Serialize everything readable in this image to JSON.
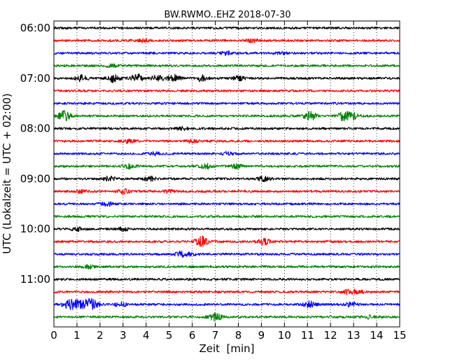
{
  "chart_data": {
    "type": "line",
    "title": "BW.RWMO..EHZ 2018-07-30",
    "xlabel": "Zeit  [min]",
    "ylabel": "UTC (Lokalzeit = UTC + 02:00)",
    "xlim": [
      0,
      15
    ],
    "x_ticks": [
      "0",
      "1",
      "2",
      "3",
      "4",
      "5",
      "6",
      "7",
      "8",
      "9",
      "10",
      "11",
      "12",
      "13",
      "14",
      "15"
    ],
    "y_tick_labels": [
      "06:00",
      "07:00",
      "08:00",
      "09:00",
      "10:00",
      "11:00"
    ],
    "grid": "vertical dotted",
    "series": [
      {
        "start": "06:00",
        "color": "#000000",
        "events": []
      },
      {
        "start": "06:15",
        "color": "#ff0000",
        "events": [
          {
            "t": 3.9,
            "amp": 2
          },
          {
            "t": 8.6,
            "amp": 2
          }
        ]
      },
      {
        "start": "06:30",
        "color": "#0000ff",
        "events": [
          {
            "t": 7.5,
            "amp": 2
          },
          {
            "t": 9.8,
            "amp": 2
          }
        ]
      },
      {
        "start": "06:45",
        "color": "#008000",
        "events": [
          {
            "t": 2.5,
            "amp": 2
          }
        ]
      },
      {
        "start": "07:00",
        "color": "#000000",
        "events": [
          {
            "t": 1.2,
            "amp": 4
          },
          {
            "t": 2.6,
            "amp": 5
          },
          {
            "t": 3.6,
            "amp": 5
          },
          {
            "t": 4.5,
            "amp": 4
          },
          {
            "t": 5.2,
            "amp": 5
          },
          {
            "t": 6.4,
            "amp": 4
          },
          {
            "t": 8.0,
            "amp": 3
          }
        ]
      },
      {
        "start": "07:15",
        "color": "#ff0000",
        "events": []
      },
      {
        "start": "07:30",
        "color": "#0000ff",
        "events": []
      },
      {
        "start": "07:45",
        "color": "#008000",
        "events": [
          {
            "t": 0.45,
            "amp": 7
          },
          {
            "t": 11.1,
            "amp": 6
          },
          {
            "t": 12.6,
            "amp": 7
          },
          {
            "t": 13.0,
            "amp": 4
          }
        ]
      },
      {
        "start": "08:00",
        "color": "#000000",
        "events": [
          {
            "t": 5.6,
            "amp": 2
          }
        ]
      },
      {
        "start": "08:15",
        "color": "#ff0000",
        "events": [
          {
            "t": 3.2,
            "amp": 2
          },
          {
            "t": 6.0,
            "amp": 2
          }
        ]
      },
      {
        "start": "08:30",
        "color": "#0000ff",
        "events": [
          {
            "t": 7.5,
            "amp": 2
          },
          {
            "t": 4.4,
            "amp": 2
          }
        ]
      },
      {
        "start": "08:45",
        "color": "#008000",
        "events": [
          {
            "t": 3.3,
            "amp": 3
          },
          {
            "t": 6.6,
            "amp": 3
          },
          {
            "t": 7.9,
            "amp": 3
          }
        ]
      },
      {
        "start": "09:00",
        "color": "#000000",
        "events": [
          {
            "t": 2.4,
            "amp": 3
          },
          {
            "t": 4.2,
            "amp": 3
          },
          {
            "t": 9.1,
            "amp": 3
          }
        ]
      },
      {
        "start": "09:15",
        "color": "#ff0000",
        "events": [
          {
            "t": 1.2,
            "amp": 2
          },
          {
            "t": 3.0,
            "amp": 3
          },
          {
            "t": 5.0,
            "amp": 2
          }
        ]
      },
      {
        "start": "09:30",
        "color": "#0000ff",
        "events": [
          {
            "t": 2.3,
            "amp": 3
          }
        ]
      },
      {
        "start": "09:45",
        "color": "#008000",
        "events": []
      },
      {
        "start": "10:00",
        "color": "#000000",
        "events": [
          {
            "t": 1.0,
            "amp": 2
          },
          {
            "t": 3.0,
            "amp": 2
          }
        ]
      },
      {
        "start": "10:15",
        "color": "#ff0000",
        "events": [
          {
            "t": 6.4,
            "amp": 7
          },
          {
            "t": 9.1,
            "amp": 4
          }
        ]
      },
      {
        "start": "10:30",
        "color": "#0000ff",
        "events": [
          {
            "t": 5.5,
            "amp": 3
          },
          {
            "t": 5.9,
            "amp": 2
          }
        ]
      },
      {
        "start": "10:45",
        "color": "#008000",
        "events": [
          {
            "t": 1.5,
            "amp": 2
          }
        ]
      },
      {
        "start": "11:00",
        "color": "#000000",
        "events": []
      },
      {
        "start": "11:15",
        "color": "#ff0000",
        "events": [
          {
            "t": 12.8,
            "amp": 3
          },
          {
            "t": 13.2,
            "amp": 2
          }
        ]
      },
      {
        "start": "11:30",
        "color": "#0000ff",
        "events": [
          {
            "t": 0.6,
            "amp": 4
          },
          {
            "t": 0.9,
            "amp": 5
          },
          {
            "t": 1.3,
            "amp": 4
          },
          {
            "t": 1.65,
            "amp": 7
          },
          {
            "t": 2.9,
            "amp": 3
          },
          {
            "t": 11.1,
            "amp": 4
          },
          {
            "t": 12.9,
            "amp": 3
          }
        ]
      },
      {
        "start": "11:45",
        "color": "#008000",
        "events": [
          {
            "t": 7.0,
            "amp": 6
          },
          {
            "t": 13.6,
            "amp": 2
          }
        ]
      }
    ]
  }
}
